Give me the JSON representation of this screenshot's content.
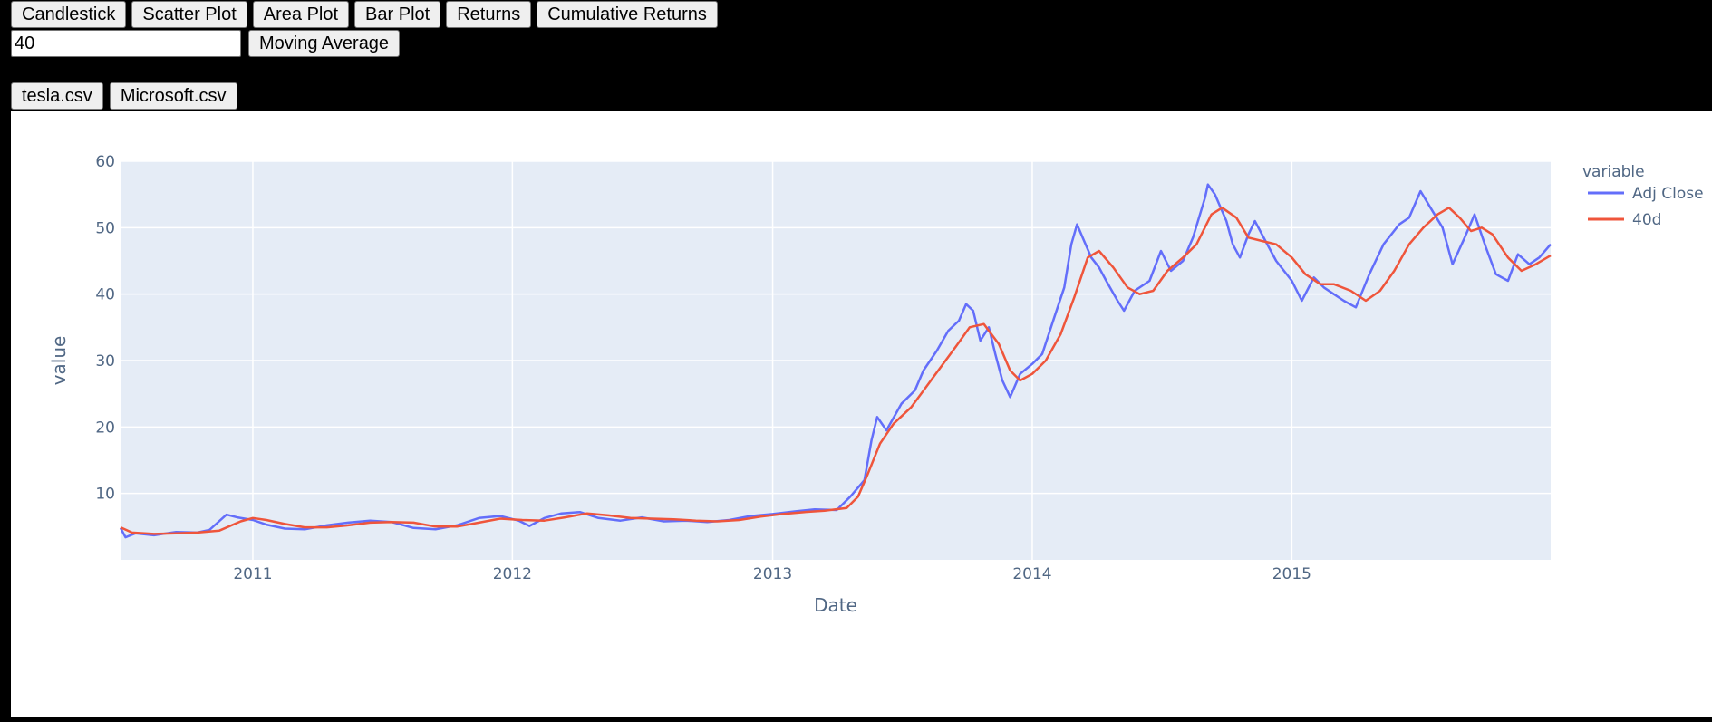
{
  "toolbar": {
    "buttons": [
      "Candlestick",
      "Scatter Plot",
      "Area Plot",
      "Bar Plot",
      "Returns",
      "Cumulative Returns"
    ]
  },
  "moving_average": {
    "input_value": "40",
    "button_label": "Moving Average"
  },
  "files": [
    "tesla.csv",
    "Microsoft.csv"
  ],
  "colors": {
    "plot_bg": "#e5ecf6",
    "adj_close": "#636efa",
    "ma": "#ef553b",
    "axis_text": "#506784"
  },
  "chart_data": {
    "type": "line",
    "title": "",
    "xlabel": "Date",
    "ylabel": "value",
    "legend_title": "variable",
    "legend_position": "right",
    "grid": true,
    "xlim": [
      "2010-06-29",
      "2015-12-31"
    ],
    "ylim": [
      0,
      60
    ],
    "x_tick_labels": [
      "2011",
      "2012",
      "2013",
      "2014",
      "2015"
    ],
    "y_ticks": [
      10,
      20,
      30,
      40,
      50,
      60
    ],
    "series": [
      {
        "name": "Adj Close",
        "color": "#636efa",
        "points": [
          [
            "2010-06-29",
            4.8
          ],
          [
            "2010-07-06",
            3.4
          ],
          [
            "2010-07-20",
            4.0
          ],
          [
            "2010-08-15",
            3.7
          ],
          [
            "2010-09-15",
            4.2
          ],
          [
            "2010-10-15",
            4.1
          ],
          [
            "2010-11-01",
            4.5
          ],
          [
            "2010-11-25",
            6.8
          ],
          [
            "2010-12-10",
            6.4
          ],
          [
            "2011-01-01",
            6.0
          ],
          [
            "2011-01-20",
            5.3
          ],
          [
            "2011-02-15",
            4.7
          ],
          [
            "2011-03-15",
            4.6
          ],
          [
            "2011-04-15",
            5.2
          ],
          [
            "2011-05-15",
            5.6
          ],
          [
            "2011-06-15",
            5.9
          ],
          [
            "2011-07-15",
            5.7
          ],
          [
            "2011-08-15",
            4.8
          ],
          [
            "2011-09-15",
            4.6
          ],
          [
            "2011-10-15",
            5.2
          ],
          [
            "2011-11-15",
            6.3
          ],
          [
            "2011-12-15",
            6.6
          ],
          [
            "2012-01-10",
            5.9
          ],
          [
            "2012-01-25",
            5.1
          ],
          [
            "2012-02-15",
            6.3
          ],
          [
            "2012-03-10",
            7.0
          ],
          [
            "2012-04-05",
            7.2
          ],
          [
            "2012-05-01",
            6.3
          ],
          [
            "2012-06-01",
            5.9
          ],
          [
            "2012-07-01",
            6.4
          ],
          [
            "2012-08-01",
            5.8
          ],
          [
            "2012-09-01",
            5.9
          ],
          [
            "2012-10-01",
            5.7
          ],
          [
            "2012-11-01",
            6.0
          ],
          [
            "2012-12-01",
            6.6
          ],
          [
            "2013-01-01",
            6.9
          ],
          [
            "2013-02-01",
            7.3
          ],
          [
            "2013-03-01",
            7.6
          ],
          [
            "2013-04-01",
            7.5
          ],
          [
            "2013-04-20",
            9.5
          ],
          [
            "2013-05-10",
            12.0
          ],
          [
            "2013-05-20",
            18.0
          ],
          [
            "2013-05-28",
            21.5
          ],
          [
            "2013-06-10",
            19.5
          ],
          [
            "2013-07-01",
            23.5
          ],
          [
            "2013-07-20",
            25.5
          ],
          [
            "2013-08-01",
            28.5
          ],
          [
            "2013-08-20",
            31.5
          ],
          [
            "2013-09-05",
            34.5
          ],
          [
            "2013-09-20",
            36.0
          ],
          [
            "2013-09-30",
            38.5
          ],
          [
            "2013-10-10",
            37.5
          ],
          [
            "2013-10-20",
            33.0
          ],
          [
            "2013-11-01",
            35.0
          ],
          [
            "2013-11-10",
            31.0
          ],
          [
            "2013-11-20",
            27.0
          ],
          [
            "2013-12-01",
            24.5
          ],
          [
            "2013-12-15",
            28.0
          ],
          [
            "2014-01-01",
            29.5
          ],
          [
            "2014-01-15",
            31.0
          ],
          [
            "2014-02-01",
            36.5
          ],
          [
            "2014-02-15",
            41.0
          ],
          [
            "2014-02-25",
            47.5
          ],
          [
            "2014-03-05",
            50.5
          ],
          [
            "2014-03-15",
            48.0
          ],
          [
            "2014-03-25",
            45.5
          ],
          [
            "2014-04-05",
            44.0
          ],
          [
            "2014-04-15",
            42.0
          ],
          [
            "2014-05-01",
            39.0
          ],
          [
            "2014-05-10",
            37.5
          ],
          [
            "2014-05-25",
            40.5
          ],
          [
            "2014-06-15",
            42.0
          ],
          [
            "2014-07-01",
            46.5
          ],
          [
            "2014-07-15",
            43.5
          ],
          [
            "2014-08-01",
            45.0
          ],
          [
            "2014-08-15",
            48.5
          ],
          [
            "2014-09-01",
            54.5
          ],
          [
            "2014-09-05",
            56.5
          ],
          [
            "2014-09-15",
            55.0
          ],
          [
            "2014-10-01",
            51.0
          ],
          [
            "2014-10-10",
            47.5
          ],
          [
            "2014-10-20",
            45.5
          ],
          [
            "2014-11-01",
            49.0
          ],
          [
            "2014-11-10",
            51.0
          ],
          [
            "2014-11-25",
            48.0
          ],
          [
            "2014-12-10",
            45.0
          ],
          [
            "2015-01-01",
            42.0
          ],
          [
            "2015-01-15",
            39.0
          ],
          [
            "2015-02-01",
            42.5
          ],
          [
            "2015-02-15",
            41.0
          ],
          [
            "2015-03-01",
            40.0
          ],
          [
            "2015-03-15",
            39.0
          ],
          [
            "2015-04-01",
            38.0
          ],
          [
            "2015-04-20",
            43.0
          ],
          [
            "2015-05-10",
            47.5
          ],
          [
            "2015-06-01",
            50.5
          ],
          [
            "2015-06-15",
            51.5
          ],
          [
            "2015-07-01",
            55.5
          ],
          [
            "2015-07-15",
            53.0
          ],
          [
            "2015-08-01",
            50.0
          ],
          [
            "2015-08-15",
            44.5
          ],
          [
            "2015-09-01",
            48.5
          ],
          [
            "2015-09-15",
            52.0
          ],
          [
            "2015-10-01",
            47.0
          ],
          [
            "2015-10-15",
            43.0
          ],
          [
            "2015-11-01",
            42.0
          ],
          [
            "2015-11-15",
            46.0
          ],
          [
            "2015-12-01",
            44.5
          ],
          [
            "2015-12-15",
            45.5
          ],
          [
            "2015-12-31",
            47.5
          ]
        ]
      },
      {
        "name": "40d",
        "color": "#ef553b",
        "points": [
          [
            "2010-06-29",
            4.9
          ],
          [
            "2010-07-15",
            4.1
          ],
          [
            "2010-08-15",
            3.9
          ],
          [
            "2010-09-15",
            4.0
          ],
          [
            "2010-10-15",
            4.1
          ],
          [
            "2010-11-15",
            4.4
          ],
          [
            "2010-12-15",
            5.8
          ],
          [
            "2011-01-01",
            6.3
          ],
          [
            "2011-01-20",
            6.0
          ],
          [
            "2011-02-15",
            5.4
          ],
          [
            "2011-03-15",
            4.9
          ],
          [
            "2011-04-15",
            4.9
          ],
          [
            "2011-05-15",
            5.2
          ],
          [
            "2011-06-15",
            5.6
          ],
          [
            "2011-07-15",
            5.7
          ],
          [
            "2011-08-15",
            5.6
          ],
          [
            "2011-09-15",
            5.0
          ],
          [
            "2011-10-15",
            5.0
          ],
          [
            "2011-11-15",
            5.6
          ],
          [
            "2011-12-15",
            6.2
          ],
          [
            "2012-01-15",
            6.0
          ],
          [
            "2012-02-15",
            5.9
          ],
          [
            "2012-03-15",
            6.4
          ],
          [
            "2012-04-15",
            7.0
          ],
          [
            "2012-05-15",
            6.7
          ],
          [
            "2012-06-15",
            6.3
          ],
          [
            "2012-07-15",
            6.2
          ],
          [
            "2012-08-15",
            6.1
          ],
          [
            "2012-09-15",
            5.9
          ],
          [
            "2012-10-15",
            5.8
          ],
          [
            "2012-11-15",
            6.0
          ],
          [
            "2012-12-15",
            6.5
          ],
          [
            "2013-01-15",
            6.9
          ],
          [
            "2013-02-15",
            7.2
          ],
          [
            "2013-03-15",
            7.4
          ],
          [
            "2013-04-15",
            7.8
          ],
          [
            "2013-05-01",
            9.5
          ],
          [
            "2013-05-15",
            13.0
          ],
          [
            "2013-06-01",
            17.5
          ],
          [
            "2013-06-20",
            20.5
          ],
          [
            "2013-07-15",
            23.0
          ],
          [
            "2013-08-15",
            27.5
          ],
          [
            "2013-09-15",
            32.0
          ],
          [
            "2013-10-05",
            35.0
          ],
          [
            "2013-10-25",
            35.5
          ],
          [
            "2013-11-15",
            32.5
          ],
          [
            "2013-12-01",
            28.5
          ],
          [
            "2013-12-15",
            27.0
          ],
          [
            "2014-01-01",
            28.0
          ],
          [
            "2014-01-20",
            30.0
          ],
          [
            "2014-02-10",
            34.0
          ],
          [
            "2014-03-01",
            39.5
          ],
          [
            "2014-03-20",
            45.5
          ],
          [
            "2014-04-05",
            46.5
          ],
          [
            "2014-04-25",
            44.0
          ],
          [
            "2014-05-15",
            41.0
          ],
          [
            "2014-06-01",
            40.0
          ],
          [
            "2014-06-20",
            40.5
          ],
          [
            "2014-07-10",
            43.5
          ],
          [
            "2014-08-01",
            45.5
          ],
          [
            "2014-08-20",
            47.5
          ],
          [
            "2014-09-10",
            52.0
          ],
          [
            "2014-09-25",
            53.0
          ],
          [
            "2014-10-15",
            51.5
          ],
          [
            "2014-11-01",
            48.5
          ],
          [
            "2014-11-20",
            48.0
          ],
          [
            "2014-12-10",
            47.5
          ],
          [
            "2015-01-01",
            45.5
          ],
          [
            "2015-01-20",
            43.0
          ],
          [
            "2015-02-10",
            41.5
          ],
          [
            "2015-03-01",
            41.5
          ],
          [
            "2015-03-25",
            40.5
          ],
          [
            "2015-04-15",
            39.0
          ],
          [
            "2015-05-05",
            40.5
          ],
          [
            "2015-05-25",
            43.5
          ],
          [
            "2015-06-15",
            47.5
          ],
          [
            "2015-07-05",
            50.0
          ],
          [
            "2015-07-25",
            52.0
          ],
          [
            "2015-08-10",
            53.0
          ],
          [
            "2015-08-25",
            51.5
          ],
          [
            "2015-09-10",
            49.5
          ],
          [
            "2015-09-25",
            50.0
          ],
          [
            "2015-10-10",
            49.0
          ],
          [
            "2015-11-01",
            45.5
          ],
          [
            "2015-11-20",
            43.5
          ],
          [
            "2015-12-10",
            44.5
          ],
          [
            "2015-12-31",
            45.8
          ]
        ]
      }
    ]
  }
}
